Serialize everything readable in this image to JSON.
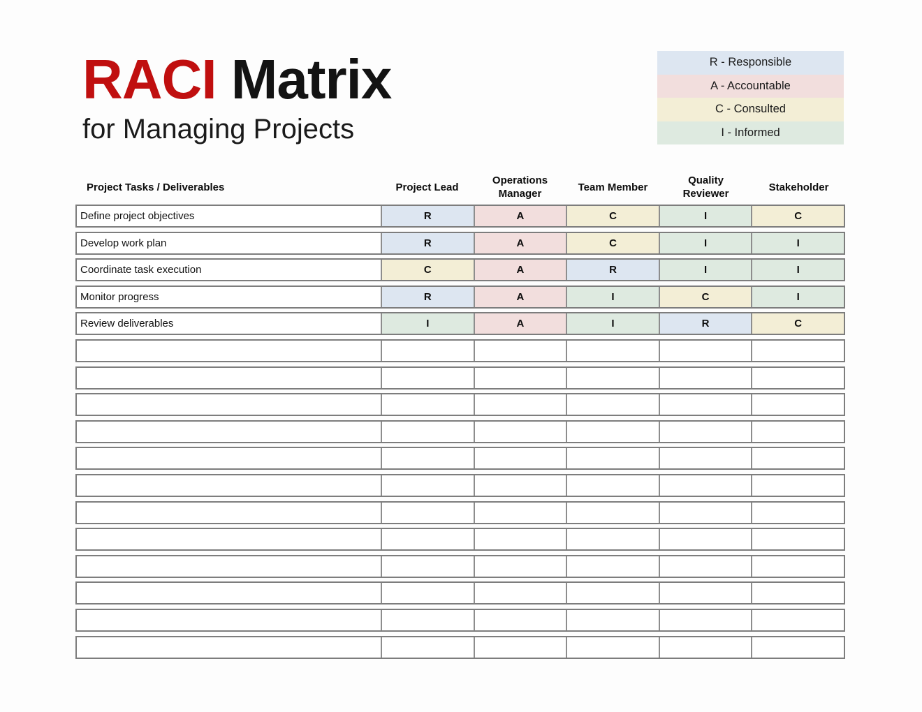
{
  "title": {
    "highlight": "RACI",
    "rest": " Matrix",
    "subtitle": "for Managing Projects"
  },
  "colors": {
    "accent_red": "#c00f0f",
    "R": "#dde6f1",
    "A": "#f2dedd",
    "C": "#f3eed6",
    "I": "#deeae0"
  },
  "legend": {
    "items": [
      {
        "key": "R",
        "label": "R - Responsible"
      },
      {
        "key": "A",
        "label": "A - Accountable"
      },
      {
        "key": "C",
        "label": "C - Consulted"
      },
      {
        "key": "I",
        "label": "I - Informed"
      }
    ]
  },
  "matrix": {
    "task_header": "Project Tasks / Deliverables",
    "role_headers": [
      "Project Lead",
      "Operations\nManager",
      "Team Member",
      "Quality\nReviewer",
      "Stakeholder"
    ],
    "rows": [
      {
        "task": "Define project objectives",
        "assignments": [
          "R",
          "A",
          "C",
          "I",
          "C"
        ]
      },
      {
        "task": "Develop work plan",
        "assignments": [
          "R",
          "A",
          "C",
          "I",
          "I"
        ]
      },
      {
        "task": "Coordinate task execution",
        "assignments": [
          "C",
          "A",
          "R",
          "I",
          "I"
        ]
      },
      {
        "task": "Monitor progress",
        "assignments": [
          "R",
          "A",
          "I",
          "C",
          "I"
        ]
      },
      {
        "task": "Review deliverables",
        "assignments": [
          "I",
          "A",
          "I",
          "R",
          "C"
        ]
      }
    ],
    "empty_row_count": 12
  }
}
